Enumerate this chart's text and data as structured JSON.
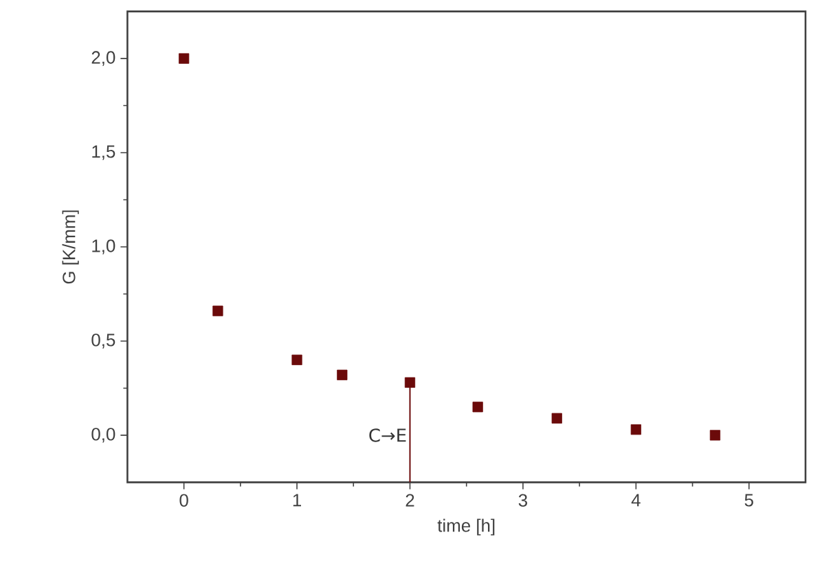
{
  "chart_data": {
    "type": "scatter",
    "xlabel": "time [h]",
    "ylabel": "G [K/mm]",
    "series": [
      {
        "x": [
          0,
          0.3,
          1,
          1.4,
          2,
          2.6,
          3.3,
          4,
          4.7
        ],
        "values": [
          2.0,
          0.66,
          0.4,
          0.32,
          0.28,
          0.15,
          0.09,
          0.03,
          0.0
        ],
        "color": "#6b0a0a",
        "marker": "square"
      },
      {
        "type": "line",
        "x": [
          2,
          2
        ],
        "values": [
          -0.25,
          0.28
        ],
        "color": "#6b0a0a",
        "marker": "none",
        "line_style": "solid"
      }
    ],
    "xlim": [
      -0.5,
      5.5
    ],
    "ylim": [
      -0.25,
      2.25
    ],
    "xticks": [
      0,
      1,
      2,
      3,
      4,
      5
    ],
    "yticks": [
      {
        "value": 0,
        "label": "0,0"
      },
      {
        "value": 0.5,
        "label": "0,5"
      },
      {
        "value": 1,
        "label": "1,0"
      },
      {
        "value": 1.5,
        "label": "1,5"
      },
      {
        "value": 2,
        "label": "2,0"
      }
    ],
    "annotations": [
      {
        "text": "C→E",
        "x": 2,
        "y": 0
      }
    ],
    "grid": false
  }
}
